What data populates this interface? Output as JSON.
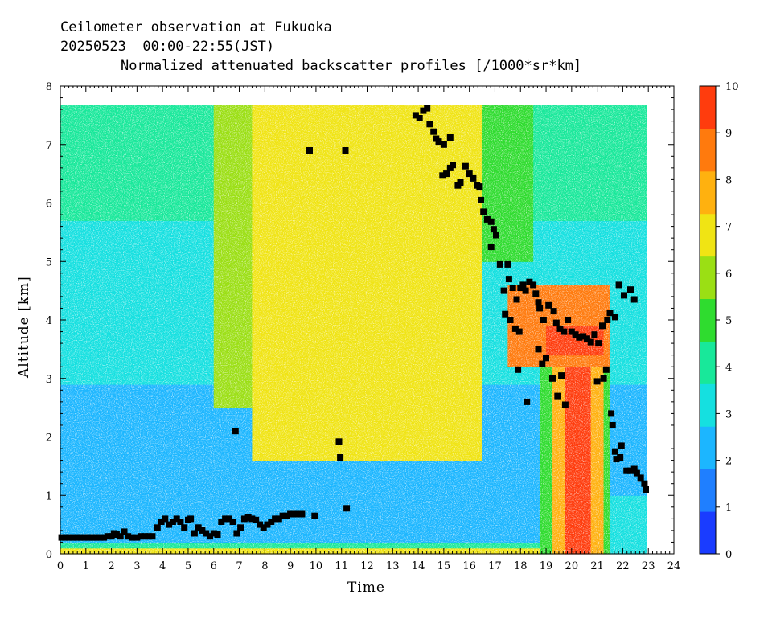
{
  "header": {
    "line1": "Ceilometer observation at Fukuoka",
    "line2": "20250523  00:00-22:55(JST)",
    "line3": "Normalized attenuated backscatter profiles [/1000*sr*km]"
  },
  "chart_data": {
    "type": "heatmap",
    "xlabel": "Time",
    "ylabel": "Altitude [km]",
    "xlim": [
      0,
      24
    ],
    "ylim": [
      0,
      8
    ],
    "x_ticks": [
      "0",
      "1",
      "2",
      "3",
      "4",
      "5",
      "6",
      "7",
      "8",
      "9",
      "10",
      "11",
      "12",
      "13",
      "14",
      "15",
      "16",
      "17",
      "18",
      "19",
      "20",
      "21",
      "22",
      "23",
      "24"
    ],
    "y_ticks": [
      "0",
      "1",
      "2",
      "3",
      "4",
      "5",
      "6",
      "7",
      "8"
    ],
    "data_time_range": [
      0,
      22.92
    ],
    "data_altitude_max": 7.67,
    "colorbar": {
      "range": [
        0,
        10
      ],
      "ticks": [
        "0",
        "1",
        "2",
        "3",
        "4",
        "5",
        "6",
        "7",
        "8",
        "9",
        "10"
      ],
      "colors": [
        "#1a3cff",
        "#1f7fff",
        "#1cb6ff",
        "#15e0e0",
        "#18e89a",
        "#2fdc2f",
        "#9bdf14",
        "#f0e414",
        "#ffb10f",
        "#ff7a0d",
        "#ff3c0d"
      ]
    },
    "cloud_base_points": [
      [
        0.05,
        0.28
      ],
      [
        0.2,
        0.28
      ],
      [
        0.35,
        0.28
      ],
      [
        0.5,
        0.28
      ],
      [
        0.65,
        0.28
      ],
      [
        0.8,
        0.28
      ],
      [
        0.95,
        0.28
      ],
      [
        1.1,
        0.28
      ],
      [
        1.25,
        0.28
      ],
      [
        1.4,
        0.28
      ],
      [
        1.55,
        0.28
      ],
      [
        1.7,
        0.28
      ],
      [
        1.85,
        0.3
      ],
      [
        2.0,
        0.3
      ],
      [
        2.1,
        0.35
      ],
      [
        2.2,
        0.33
      ],
      [
        2.35,
        0.3
      ],
      [
        2.5,
        0.38
      ],
      [
        2.65,
        0.3
      ],
      [
        2.8,
        0.28
      ],
      [
        3.0,
        0.28
      ],
      [
        3.15,
        0.3
      ],
      [
        3.3,
        0.3
      ],
      [
        3.45,
        0.3
      ],
      [
        3.6,
        0.3
      ],
      [
        3.8,
        0.45
      ],
      [
        3.95,
        0.55
      ],
      [
        4.1,
        0.6
      ],
      [
        4.25,
        0.5
      ],
      [
        4.4,
        0.55
      ],
      [
        4.55,
        0.6
      ],
      [
        4.7,
        0.55
      ],
      [
        4.85,
        0.45
      ],
      [
        5.0,
        0.58
      ],
      [
        5.1,
        0.6
      ],
      [
        5.25,
        0.35
      ],
      [
        5.4,
        0.45
      ],
      [
        5.55,
        0.4
      ],
      [
        5.7,
        0.35
      ],
      [
        5.85,
        0.3
      ],
      [
        6.0,
        0.35
      ],
      [
        6.15,
        0.33
      ],
      [
        6.3,
        0.55
      ],
      [
        6.45,
        0.6
      ],
      [
        6.6,
        0.6
      ],
      [
        6.75,
        0.55
      ],
      [
        6.9,
        0.35
      ],
      [
        7.05,
        0.45
      ],
      [
        7.2,
        0.6
      ],
      [
        7.35,
        0.62
      ],
      [
        7.5,
        0.6
      ],
      [
        7.65,
        0.58
      ],
      [
        7.8,
        0.5
      ],
      [
        7.95,
        0.45
      ],
      [
        8.1,
        0.5
      ],
      [
        8.25,
        0.55
      ],
      [
        8.4,
        0.6
      ],
      [
        8.55,
        0.6
      ],
      [
        8.7,
        0.65
      ],
      [
        8.85,
        0.65
      ],
      [
        9.0,
        0.68
      ],
      [
        9.2,
        0.68
      ],
      [
        9.45,
        0.68
      ],
      [
        9.95,
        0.65
      ],
      [
        11.2,
        0.78
      ],
      [
        6.85,
        2.1
      ],
      [
        10.9,
        1.92
      ],
      [
        10.95,
        1.65
      ],
      [
        9.75,
        6.9
      ],
      [
        11.15,
        6.9
      ],
      [
        13.9,
        7.5
      ],
      [
        14.05,
        7.45
      ],
      [
        14.2,
        7.58
      ],
      [
        14.35,
        7.62
      ],
      [
        14.45,
        7.35
      ],
      [
        14.6,
        7.22
      ],
      [
        14.7,
        7.1
      ],
      [
        14.8,
        7.05
      ],
      [
        15.0,
        7.0
      ],
      [
        15.25,
        7.12
      ],
      [
        14.95,
        6.47
      ],
      [
        15.1,
        6.5
      ],
      [
        15.25,
        6.6
      ],
      [
        15.35,
        6.65
      ],
      [
        15.55,
        6.3
      ],
      [
        15.65,
        6.35
      ],
      [
        15.85,
        6.63
      ],
      [
        16.0,
        6.5
      ],
      [
        16.15,
        6.42
      ],
      [
        16.3,
        6.3
      ],
      [
        16.4,
        6.28
      ],
      [
        16.45,
        6.05
      ],
      [
        16.55,
        5.85
      ],
      [
        16.7,
        5.72
      ],
      [
        16.85,
        5.68
      ],
      [
        16.95,
        5.55
      ],
      [
        17.05,
        5.45
      ],
      [
        16.85,
        5.25
      ],
      [
        17.2,
        4.95
      ],
      [
        17.5,
        4.95
      ],
      [
        17.35,
        4.5
      ],
      [
        17.55,
        4.7
      ],
      [
        17.7,
        4.55
      ],
      [
        17.85,
        4.35
      ],
      [
        18.0,
        4.55
      ],
      [
        18.1,
        4.6
      ],
      [
        18.2,
        4.5
      ],
      [
        18.35,
        4.65
      ],
      [
        18.5,
        4.6
      ],
      [
        18.6,
        4.45
      ],
      [
        18.7,
        4.3
      ],
      [
        18.9,
        4.0
      ],
      [
        18.75,
        4.2
      ],
      [
        19.1,
        4.25
      ],
      [
        19.3,
        4.15
      ],
      [
        19.4,
        3.95
      ],
      [
        19.55,
        3.85
      ],
      [
        19.7,
        3.8
      ],
      [
        19.85,
        4.0
      ],
      [
        20.0,
        3.8
      ],
      [
        20.15,
        3.75
      ],
      [
        20.3,
        3.7
      ],
      [
        20.45,
        3.72
      ],
      [
        20.6,
        3.68
      ],
      [
        20.75,
        3.62
      ],
      [
        20.9,
        3.75
      ],
      [
        21.05,
        3.6
      ],
      [
        21.2,
        3.9
      ],
      [
        21.4,
        4.0
      ],
      [
        21.7,
        4.05
      ],
      [
        21.5,
        4.12
      ],
      [
        21.85,
        4.6
      ],
      [
        22.05,
        4.42
      ],
      [
        22.3,
        4.52
      ],
      [
        22.45,
        4.35
      ],
      [
        17.4,
        4.1
      ],
      [
        17.6,
        4.0
      ],
      [
        17.8,
        3.85
      ],
      [
        17.95,
        3.8
      ],
      [
        18.7,
        3.5
      ],
      [
        18.85,
        3.25
      ],
      [
        19.0,
        3.35
      ],
      [
        19.25,
        3.0
      ],
      [
        19.45,
        2.7
      ],
      [
        19.6,
        3.05
      ],
      [
        19.75,
        2.55
      ],
      [
        21.0,
        2.95
      ],
      [
        21.25,
        3.0
      ],
      [
        21.35,
        3.15
      ],
      [
        18.25,
        2.6
      ],
      [
        17.9,
        3.15
      ],
      [
        21.55,
        2.4
      ],
      [
        21.6,
        2.2
      ],
      [
        21.7,
        1.75
      ],
      [
        21.75,
        1.62
      ],
      [
        21.9,
        1.65
      ],
      [
        21.95,
        1.85
      ],
      [
        22.15,
        1.42
      ],
      [
        22.3,
        1.42
      ],
      [
        22.45,
        1.45
      ],
      [
        22.55,
        1.38
      ],
      [
        22.7,
        1.3
      ],
      [
        22.85,
        1.2
      ],
      [
        22.9,
        1.1
      ]
    ]
  }
}
